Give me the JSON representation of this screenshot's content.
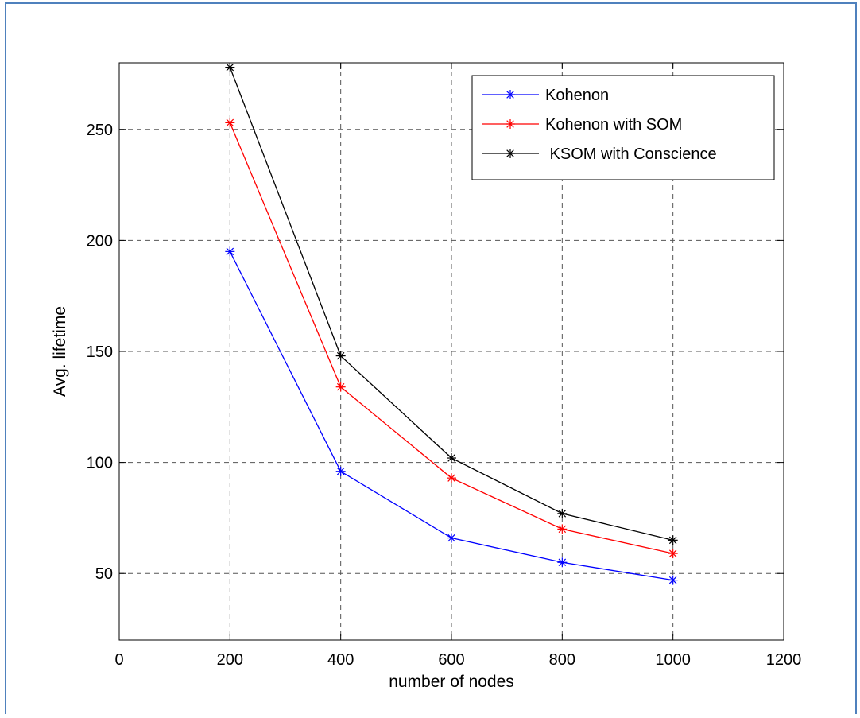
{
  "chart_data": {
    "type": "line",
    "title": "",
    "xlabel": "number of nodes",
    "ylabel": "Avg. lifetime",
    "xlim": [
      0,
      1200
    ],
    "ylim": [
      20,
      280
    ],
    "xticks": [
      0,
      200,
      400,
      600,
      800,
      1000,
      1200
    ],
    "yticks": [
      50,
      100,
      150,
      200,
      250
    ],
    "grid": true,
    "legend_position": "top-right",
    "x": [
      200,
      400,
      600,
      800,
      1000
    ],
    "series": [
      {
        "name": "Kohenon",
        "color": "#0000ff",
        "marker": "*",
        "values": [
          195,
          96,
          66,
          55,
          47
        ]
      },
      {
        "name": "Kohenon with SOM",
        "color": "#ff0000",
        "marker": "*",
        "values": [
          253,
          134,
          93,
          70,
          59
        ]
      },
      {
        "name": " KSOM with Conscience",
        "color": "#000000",
        "marker": "*",
        "values": [
          278,
          148,
          102,
          77,
          65
        ]
      }
    ]
  },
  "colors": {
    "frame_border": "#4f81bd",
    "grid": "#555555"
  }
}
